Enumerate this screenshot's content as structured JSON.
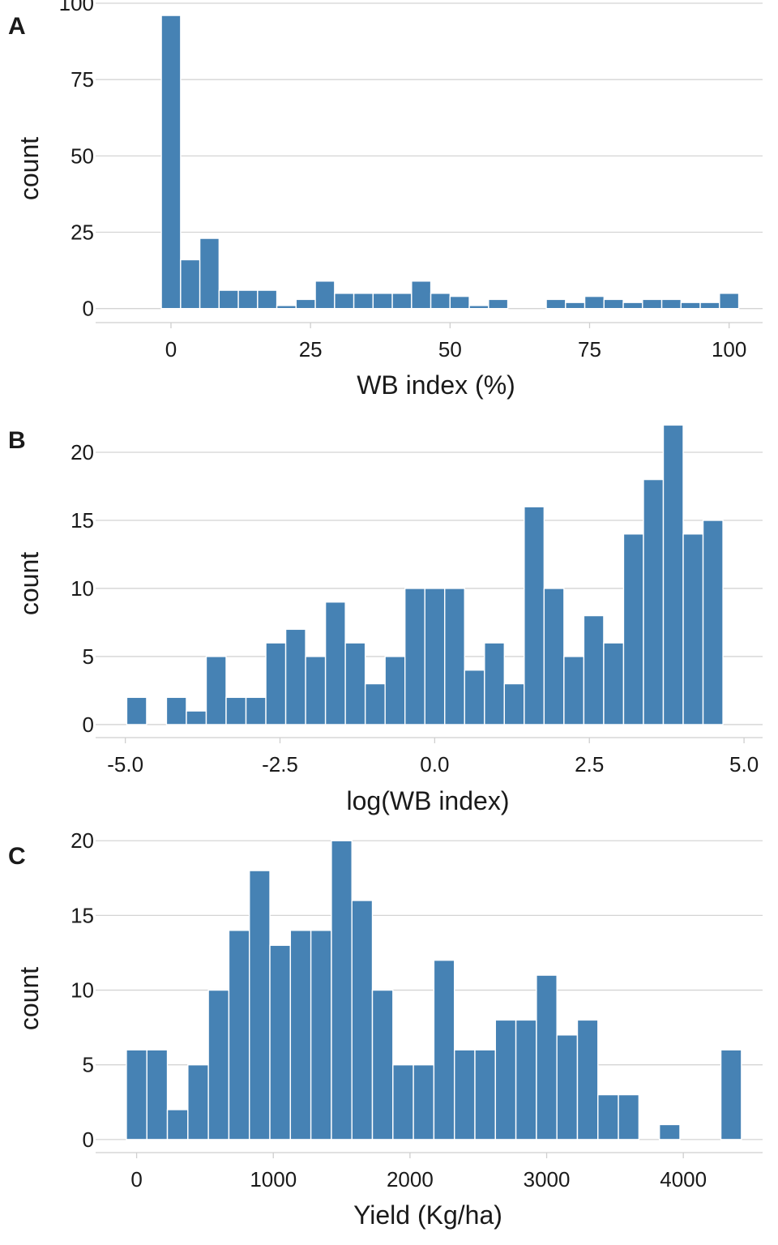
{
  "bar_color": "#4682B4",
  "chart_data": [
    {
      "panel": "A",
      "type": "bar",
      "xlabel": "WB index (%)",
      "ylabel": "count",
      "grid": true,
      "xlim": [
        -13.5,
        106
      ],
      "ylim": [
        -3,
        100
      ],
      "x_ticks": [
        0,
        25,
        50,
        75,
        100
      ],
      "x_tick_labels": [
        "0",
        "25",
        "50",
        "75",
        "100"
      ],
      "y_ticks": [
        0,
        25,
        50,
        75,
        100
      ],
      "y_tick_labels": [
        "0",
        "25",
        "50",
        "75",
        "100"
      ],
      "bin_width": 3.4483,
      "bin_centers": [
        0,
        3.4483,
        6.8966,
        10.3448,
        13.7931,
        17.2414,
        20.6897,
        24.1379,
        27.5862,
        31.0345,
        34.4828,
        37.931,
        41.3793,
        44.8276,
        48.2759,
        51.7241,
        55.1724,
        58.6207,
        62.069,
        65.5172,
        68.9655,
        72.4138,
        75.8621,
        79.3103,
        82.7586,
        86.2069,
        89.6552,
        93.1034,
        96.5517,
        100
      ],
      "counts": [
        96,
        16,
        23,
        6,
        6,
        6,
        1,
        3,
        9,
        5,
        5,
        5,
        5,
        9,
        5,
        4,
        1,
        3,
        0,
        0,
        3,
        2,
        4,
        3,
        2,
        3,
        3,
        2,
        2,
        5
      ]
    },
    {
      "panel": "B",
      "type": "bar",
      "xlabel": "log(WB index)",
      "ylabel": "count",
      "grid": true,
      "xlim": [
        -5.48,
        5.3
      ],
      "ylim": [
        -0.6,
        22.5
      ],
      "x_ticks": [
        -5.0,
        -2.5,
        0.0,
        2.5,
        5.0
      ],
      "x_tick_labels": [
        "-5.0",
        "-2.5",
        "0.0",
        "2.5",
        "5.0"
      ],
      "y_ticks": [
        0,
        5,
        10,
        15,
        20
      ],
      "y_tick_labels": [
        "0",
        "5",
        "10",
        "15",
        "20"
      ],
      "bin_width": 0.3212,
      "bin_centers": [
        -4.8165,
        -4.4953,
        -4.1741,
        -3.8529,
        -3.5317,
        -3.2105,
        -2.8893,
        -2.5681,
        -2.2469,
        -1.9257,
        -1.6045,
        -1.2833,
        -0.9621,
        -0.6409,
        -0.3197,
        0.0015,
        0.3227,
        0.6439,
        0.9651,
        1.2863,
        1.6075,
        1.9287,
        2.2499,
        2.5711,
        2.8923,
        3.2135,
        3.5347,
        3.8559,
        4.1771,
        4.4983
      ],
      "counts": [
        2,
        0,
        2,
        1,
        5,
        2,
        2,
        6,
        7,
        5,
        9,
        6,
        3,
        5,
        10,
        10,
        10,
        4,
        6,
        3,
        16,
        10,
        5,
        8,
        6,
        14,
        18,
        22,
        14,
        15
      ]
    },
    {
      "panel": "C",
      "type": "bar",
      "xlabel": "Yield (Kg/ha)",
      "ylabel": "count",
      "grid": true,
      "xlim": [
        -300,
        4580
      ],
      "ylim": [
        -0.55,
        20.5
      ],
      "x_ticks": [
        0,
        1000,
        2000,
        3000,
        4000
      ],
      "x_tick_labels": [
        "0",
        "1000",
        "2000",
        "3000",
        "4000"
      ],
      "y_ticks": [
        0,
        5,
        10,
        15,
        20
      ],
      "y_tick_labels": [
        "0",
        "5",
        "10",
        "15",
        "20"
      ],
      "bin_width": 150,
      "bin_centers": [
        0,
        150,
        300,
        450,
        600,
        750,
        900,
        1050,
        1200,
        1350,
        1500,
        1650,
        1800,
        1950,
        2100,
        2250,
        2400,
        2550,
        2700,
        2850,
        3000,
        3150,
        3300,
        3450,
        3600,
        3750,
        3900,
        4050,
        4200,
        4350
      ],
      "counts": [
        6,
        6,
        2,
        5,
        10,
        14,
        18,
        13,
        14,
        14,
        20,
        16,
        10,
        5,
        5,
        12,
        6,
        6,
        8,
        8,
        11,
        7,
        8,
        3,
        3,
        0,
        1,
        0,
        0,
        6
      ]
    }
  ]
}
